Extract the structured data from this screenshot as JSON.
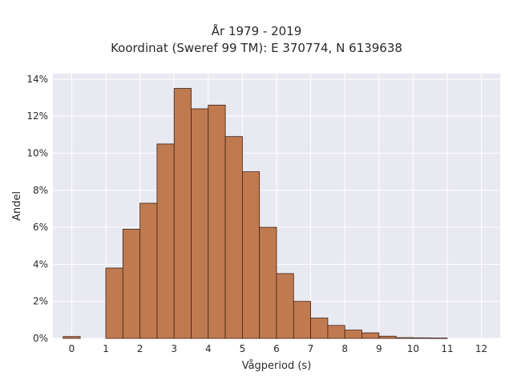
{
  "chart_data": {
    "type": "bar",
    "title": "År 1979 - 2019",
    "subtitle": "Koordinat (Sweref 99 TM): E 370774, N 6139638",
    "xlabel": "Vågperiod (s)",
    "ylabel": "Andel",
    "bin_width": 0.5,
    "bins": [
      {
        "x0": -0.25,
        "x1": 0.25,
        "value": 0.1
      },
      {
        "x0": 1.0,
        "x1": 1.5,
        "value": 3.8
      },
      {
        "x0": 1.5,
        "x1": 2.0,
        "value": 5.9
      },
      {
        "x0": 2.0,
        "x1": 2.5,
        "value": 7.3
      },
      {
        "x0": 2.5,
        "x1": 3.0,
        "value": 10.5
      },
      {
        "x0": 3.0,
        "x1": 3.5,
        "value": 13.5
      },
      {
        "x0": 3.5,
        "x1": 4.0,
        "value": 12.4
      },
      {
        "x0": 4.0,
        "x1": 4.5,
        "value": 12.6
      },
      {
        "x0": 4.5,
        "x1": 5.0,
        "value": 10.9
      },
      {
        "x0": 5.0,
        "x1": 5.5,
        "value": 9.0
      },
      {
        "x0": 5.5,
        "x1": 6.0,
        "value": 6.0
      },
      {
        "x0": 6.0,
        "x1": 6.5,
        "value": 3.5
      },
      {
        "x0": 6.5,
        "x1": 7.0,
        "value": 2.0
      },
      {
        "x0": 7.0,
        "x1": 7.5,
        "value": 1.1
      },
      {
        "x0": 7.5,
        "x1": 8.0,
        "value": 0.7
      },
      {
        "x0": 8.0,
        "x1": 8.5,
        "value": 0.45
      },
      {
        "x0": 8.5,
        "x1": 9.0,
        "value": 0.3
      },
      {
        "x0": 9.0,
        "x1": 9.5,
        "value": 0.12
      },
      {
        "x0": 9.5,
        "x1": 10.0,
        "value": 0.04
      },
      {
        "x0": 10.0,
        "x1": 10.5,
        "value": 0.03
      },
      {
        "x0": 10.5,
        "x1": 11.0,
        "value": 0.02
      }
    ],
    "xlim": [
      -0.55,
      12.55
    ],
    "ylim": [
      0,
      14.3
    ],
    "x_ticks": [
      0,
      1,
      2,
      3,
      4,
      5,
      6,
      7,
      8,
      9,
      10,
      11,
      12
    ],
    "y_ticks": [
      0,
      2,
      4,
      6,
      8,
      10,
      12,
      14
    ],
    "y_tick_labels": [
      "0%",
      "2%",
      "4%",
      "6%",
      "8%",
      "10%",
      "12%",
      "14%"
    ],
    "grid": true,
    "colors": {
      "bar_fill": "#c07a50",
      "bar_edge": "#3e2217",
      "plot_bg": "#e9e9f1",
      "grid": "#ffffff"
    }
  }
}
